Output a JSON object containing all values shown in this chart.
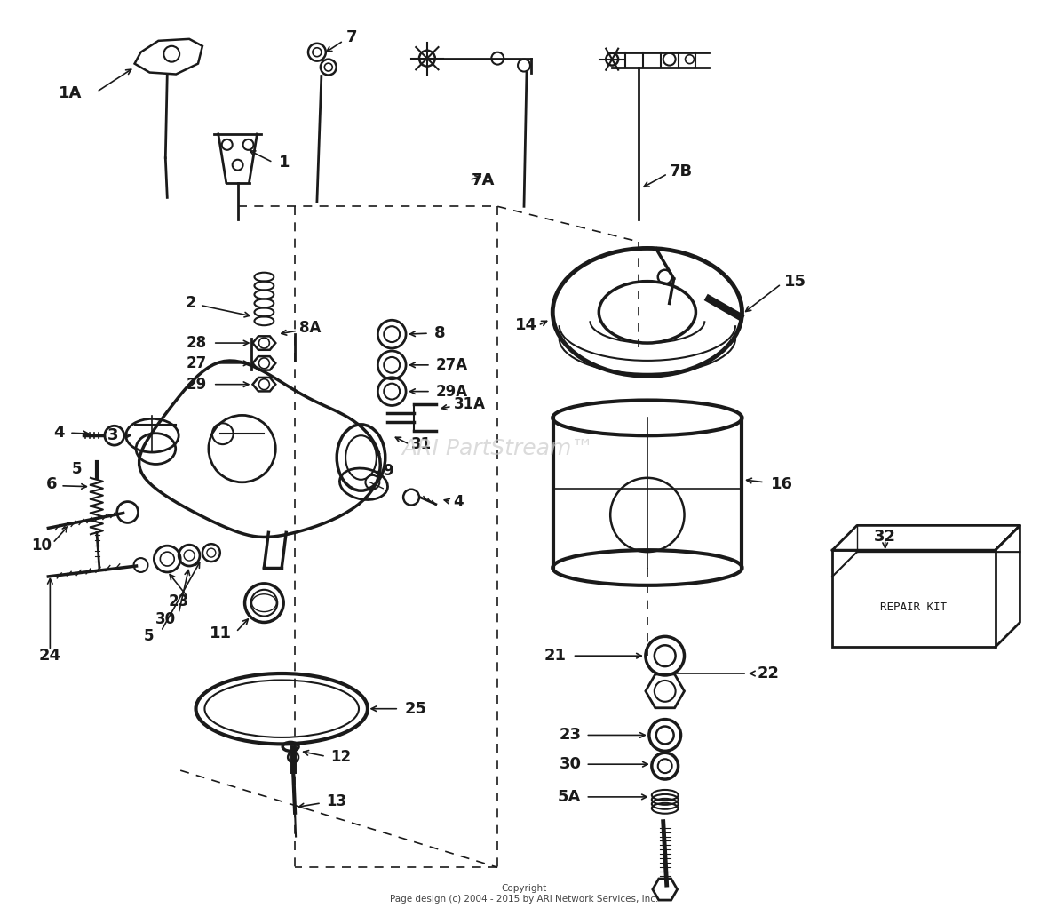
{
  "background_color": "#ffffff",
  "line_color": "#1a1a1a",
  "watermark_text": "ARI PartStream™",
  "watermark_color": "#cccccc",
  "copyright_text": "Copyright\nPage design (c) 2004 - 2015 by ARI Network Services, Inc.",
  "repair_kit_text": "REPAIR KIT",
  "fig_w": 11.8,
  "fig_h": 10.31,
  "dpi": 100
}
